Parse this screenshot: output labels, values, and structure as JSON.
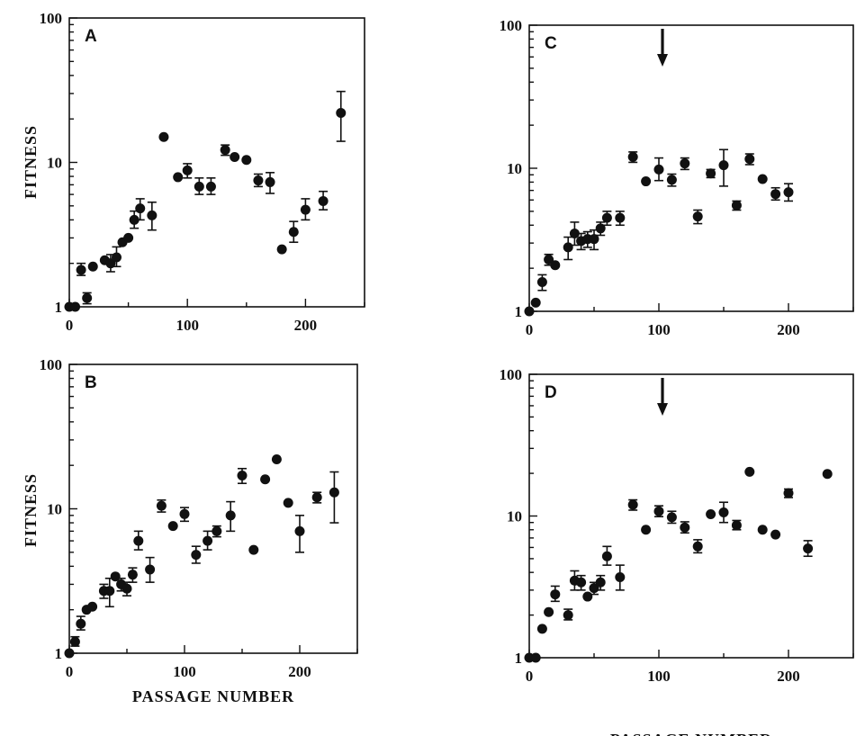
{
  "chart_data": [
    {
      "type": "scatter",
      "panel": "A",
      "yscale": "log",
      "xlim": [
        0,
        250
      ],
      "ylim": [
        1,
        100
      ],
      "xticks": [
        0,
        100,
        200
      ],
      "yticks": [
        1,
        10,
        100
      ],
      "ylabel": "FITNESS",
      "xlabel": "",
      "arrow_at_x": null,
      "points": [
        {
          "x": 0,
          "y": 1.0
        },
        {
          "x": 5,
          "y": 1.0
        },
        {
          "x": 10,
          "y": 1.8,
          "err": [
            1.65,
            2.0
          ]
        },
        {
          "x": 15,
          "y": 1.15,
          "err": [
            1.05,
            1.25
          ]
        },
        {
          "x": 20,
          "y": 1.9
        },
        {
          "x": 30,
          "y": 2.1
        },
        {
          "x": 35,
          "y": 2.0,
          "err": [
            1.75,
            2.3
          ]
        },
        {
          "x": 40,
          "y": 2.2,
          "err": [
            1.9,
            2.6
          ]
        },
        {
          "x": 45,
          "y": 2.8
        },
        {
          "x": 50,
          "y": 3.0
        },
        {
          "x": 55,
          "y": 4.0,
          "err": [
            3.5,
            4.6
          ]
        },
        {
          "x": 60,
          "y": 4.8,
          "err": [
            4.0,
            5.6
          ]
        },
        {
          "x": 70,
          "y": 4.3,
          "err": [
            3.4,
            5.3
          ]
        },
        {
          "x": 80,
          "y": 15.0
        },
        {
          "x": 92,
          "y": 7.9
        },
        {
          "x": 100,
          "y": 8.8,
          "err": [
            7.8,
            9.8
          ]
        },
        {
          "x": 110,
          "y": 6.8,
          "err": [
            6.0,
            7.8
          ]
        },
        {
          "x": 120,
          "y": 6.8,
          "err": [
            6.0,
            7.8
          ]
        },
        {
          "x": 132,
          "y": 12.2,
          "err": [
            11.2,
            13.2
          ]
        },
        {
          "x": 140,
          "y": 10.9
        },
        {
          "x": 150,
          "y": 10.4
        },
        {
          "x": 160,
          "y": 7.5,
          "err": [
            6.8,
            8.3
          ]
        },
        {
          "x": 170,
          "y": 7.3,
          "err": [
            6.1,
            8.5
          ]
        },
        {
          "x": 180,
          "y": 2.5
        },
        {
          "x": 190,
          "y": 3.3,
          "err": [
            2.8,
            3.9
          ]
        },
        {
          "x": 200,
          "y": 4.7,
          "err": [
            4.0,
            5.6
          ]
        },
        {
          "x": 215,
          "y": 5.4,
          "err": [
            4.7,
            6.3
          ]
        },
        {
          "x": 230,
          "y": 22.0,
          "err": [
            14.0,
            31.0
          ]
        }
      ]
    },
    {
      "type": "scatter",
      "panel": "B",
      "yscale": "log",
      "xlim": [
        0,
        250
      ],
      "ylim": [
        1,
        100
      ],
      "xticks": [
        0,
        100,
        200
      ],
      "yticks": [
        1,
        10,
        100
      ],
      "ylabel": "FITNESS",
      "xlabel": "PASSAGE NUMBER",
      "arrow_at_x": null,
      "points": [
        {
          "x": 0,
          "y": 1.0
        },
        {
          "x": 5,
          "y": 1.2,
          "err": [
            1.12,
            1.3
          ]
        },
        {
          "x": 10,
          "y": 1.6,
          "err": [
            1.45,
            1.8
          ]
        },
        {
          "x": 15,
          "y": 2.0
        },
        {
          "x": 20,
          "y": 2.1
        },
        {
          "x": 30,
          "y": 2.7,
          "err": [
            2.4,
            3.0
          ]
        },
        {
          "x": 35,
          "y": 2.7,
          "err": [
            2.1,
            3.3
          ]
        },
        {
          "x": 40,
          "y": 3.4
        },
        {
          "x": 45,
          "y": 3.0,
          "err": [
            2.7,
            3.3
          ]
        },
        {
          "x": 50,
          "y": 2.8,
          "err": [
            2.5,
            3.1
          ]
        },
        {
          "x": 55,
          "y": 3.5,
          "err": [
            3.1,
            3.9
          ]
        },
        {
          "x": 60,
          "y": 6.0,
          "err": [
            5.2,
            7.0
          ]
        },
        {
          "x": 70,
          "y": 3.8,
          "err": [
            3.1,
            4.6
          ]
        },
        {
          "x": 80,
          "y": 10.5,
          "err": [
            9.5,
            11.5
          ]
        },
        {
          "x": 90,
          "y": 7.6
        },
        {
          "x": 100,
          "y": 9.2,
          "err": [
            8.2,
            10.2
          ]
        },
        {
          "x": 110,
          "y": 4.8,
          "err": [
            4.2,
            5.5
          ]
        },
        {
          "x": 120,
          "y": 6.0,
          "err": [
            5.2,
            7.0
          ]
        },
        {
          "x": 128,
          "y": 7.0,
          "err": [
            6.4,
            7.6
          ]
        },
        {
          "x": 140,
          "y": 9.0,
          "err": [
            7.0,
            11.2
          ]
        },
        {
          "x": 150,
          "y": 17.0,
          "err": [
            15.0,
            19.0
          ]
        },
        {
          "x": 160,
          "y": 5.2
        },
        {
          "x": 170,
          "y": 16.0
        },
        {
          "x": 180,
          "y": 22.0
        },
        {
          "x": 190,
          "y": 11.0
        },
        {
          "x": 200,
          "y": 7.0,
          "err": [
            5.0,
            9.0
          ]
        },
        {
          "x": 215,
          "y": 12.0,
          "err": [
            11.0,
            13.0
          ]
        },
        {
          "x": 230,
          "y": 13.0,
          "err": [
            8.0,
            18.0
          ]
        }
      ]
    },
    {
      "type": "scatter",
      "panel": "C",
      "yscale": "log",
      "xlim": [
        0,
        250
      ],
      "ylim": [
        1,
        100
      ],
      "xticks": [
        0,
        100,
        200
      ],
      "yticks": [
        1,
        10,
        100
      ],
      "ylabel": "",
      "xlabel": "",
      "arrow_at_x": 100,
      "points": [
        {
          "x": 0,
          "y": 1.0
        },
        {
          "x": 5,
          "y": 1.15
        },
        {
          "x": 10,
          "y": 1.6,
          "err": [
            1.4,
            1.8
          ]
        },
        {
          "x": 15,
          "y": 2.3,
          "err": [
            2.1,
            2.5
          ]
        },
        {
          "x": 20,
          "y": 2.1
        },
        {
          "x": 30,
          "y": 2.8,
          "err": [
            2.3,
            3.3
          ]
        },
        {
          "x": 35,
          "y": 3.5,
          "err": [
            2.9,
            4.2
          ]
        },
        {
          "x": 40,
          "y": 3.1,
          "err": [
            2.7,
            3.5
          ]
        },
        {
          "x": 45,
          "y": 3.2,
          "err": [
            2.8,
            3.6
          ]
        },
        {
          "x": 50,
          "y": 3.2,
          "err": [
            2.7,
            3.7
          ]
        },
        {
          "x": 55,
          "y": 3.8,
          "err": [
            3.4,
            4.2
          ]
        },
        {
          "x": 60,
          "y": 4.5,
          "err": [
            4.0,
            5.0
          ]
        },
        {
          "x": 70,
          "y": 4.5,
          "err": [
            4.0,
            5.0
          ]
        },
        {
          "x": 80,
          "y": 12.0,
          "err": [
            11.0,
            13.0
          ]
        },
        {
          "x": 90,
          "y": 8.1
        },
        {
          "x": 100,
          "y": 9.8,
          "err": [
            8.2,
            11.8
          ]
        },
        {
          "x": 110,
          "y": 8.3,
          "err": [
            7.5,
            9.1
          ]
        },
        {
          "x": 120,
          "y": 10.8,
          "err": [
            9.8,
            11.8
          ]
        },
        {
          "x": 130,
          "y": 4.6,
          "err": [
            4.1,
            5.1
          ]
        },
        {
          "x": 140,
          "y": 9.2,
          "err": [
            8.6,
            9.8
          ]
        },
        {
          "x": 150,
          "y": 10.5,
          "err": [
            7.5,
            13.5
          ]
        },
        {
          "x": 160,
          "y": 5.5,
          "err": [
            5.1,
            5.9
          ]
        },
        {
          "x": 170,
          "y": 11.6,
          "err": [
            10.6,
            12.6
          ]
        },
        {
          "x": 180,
          "y": 8.4
        },
        {
          "x": 190,
          "y": 6.6,
          "err": [
            6.0,
            7.3
          ]
        },
        {
          "x": 200,
          "y": 6.8,
          "err": [
            5.9,
            7.8
          ]
        }
      ]
    },
    {
      "type": "scatter",
      "panel": "D",
      "yscale": "log",
      "xlim": [
        0,
        250
      ],
      "ylim": [
        1,
        100
      ],
      "xticks": [
        0,
        100,
        200
      ],
      "yticks": [
        1,
        10,
        100
      ],
      "ylabel": "",
      "xlabel": "PASSAGE NUMBER",
      "arrow_at_x": 100,
      "points": [
        {
          "x": 0,
          "y": 1.0
        },
        {
          "x": 5,
          "y": 1.0
        },
        {
          "x": 10,
          "y": 1.6
        },
        {
          "x": 15,
          "y": 2.1
        },
        {
          "x": 20,
          "y": 2.8,
          "err": [
            2.5,
            3.2
          ]
        },
        {
          "x": 30,
          "y": 2.0,
          "err": [
            1.85,
            2.2
          ]
        },
        {
          "x": 35,
          "y": 3.5,
          "err": [
            3.0,
            4.1
          ]
        },
        {
          "x": 40,
          "y": 3.4,
          "err": [
            3.0,
            3.8
          ]
        },
        {
          "x": 45,
          "y": 2.7
        },
        {
          "x": 50,
          "y": 3.1,
          "err": [
            2.8,
            3.4
          ]
        },
        {
          "x": 55,
          "y": 3.4,
          "err": [
            3.0,
            3.8
          ]
        },
        {
          "x": 60,
          "y": 5.2,
          "err": [
            4.5,
            6.1
          ]
        },
        {
          "x": 70,
          "y": 3.7,
          "err": [
            3.0,
            4.5
          ]
        },
        {
          "x": 80,
          "y": 12.0,
          "err": [
            11.0,
            13.0
          ]
        },
        {
          "x": 90,
          "y": 8.0
        },
        {
          "x": 100,
          "y": 10.8,
          "err": [
            9.9,
            11.8
          ]
        },
        {
          "x": 110,
          "y": 9.8,
          "err": [
            8.9,
            10.8
          ]
        },
        {
          "x": 120,
          "y": 8.3,
          "err": [
            7.6,
            9.1
          ]
        },
        {
          "x": 130,
          "y": 6.1,
          "err": [
            5.5,
            6.8
          ]
        },
        {
          "x": 140,
          "y": 10.3
        },
        {
          "x": 150,
          "y": 10.6,
          "err": [
            9.0,
            12.5
          ]
        },
        {
          "x": 160,
          "y": 8.6,
          "err": [
            8.0,
            9.3
          ]
        },
        {
          "x": 170,
          "y": 20.5
        },
        {
          "x": 180,
          "y": 8.0
        },
        {
          "x": 190,
          "y": 7.4
        },
        {
          "x": 200,
          "y": 14.5,
          "err": [
            13.5,
            15.5
          ]
        },
        {
          "x": 215,
          "y": 5.9,
          "err": [
            5.2,
            6.7
          ]
        },
        {
          "x": 230,
          "y": 19.8
        }
      ]
    }
  ]
}
